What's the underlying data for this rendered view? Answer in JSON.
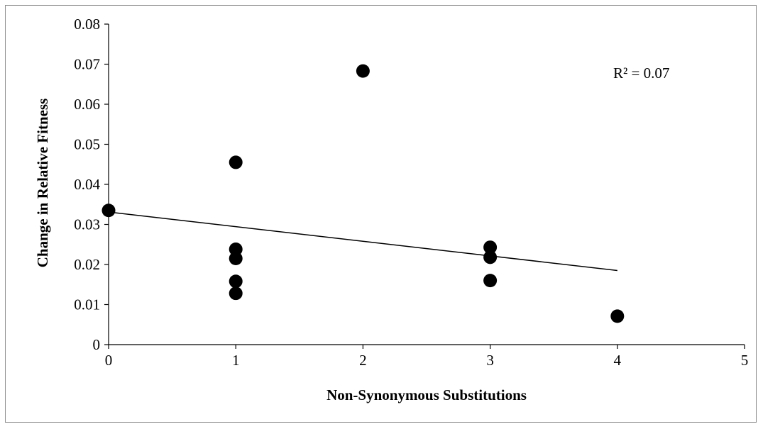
{
  "chart_data": {
    "type": "scatter",
    "xlabel": "Non-Synonymous Substitutions",
    "ylabel": "Change in Relative Fitness",
    "xlim": [
      0,
      5
    ],
    "ylim": [
      0,
      0.08
    ],
    "x_ticks": [
      "0",
      "1",
      "2",
      "3",
      "4",
      "5"
    ],
    "y_ticks": [
      "0",
      "0.01",
      "0.02",
      "0.03",
      "0.04",
      "0.05",
      "0.06",
      "0.07",
      "0.08"
    ],
    "grid": false,
    "legend": false,
    "points": [
      {
        "x": 0,
        "y": 0.0335
      },
      {
        "x": 1,
        "y": 0.0455
      },
      {
        "x": 1,
        "y": 0.0238
      },
      {
        "x": 1,
        "y": 0.0215
      },
      {
        "x": 1,
        "y": 0.0158
      },
      {
        "x": 1,
        "y": 0.0128
      },
      {
        "x": 2,
        "y": 0.0683
      },
      {
        "x": 3,
        "y": 0.0243
      },
      {
        "x": 3,
        "y": 0.0218
      },
      {
        "x": 3,
        "y": 0.016
      },
      {
        "x": 4,
        "y": 0.0071
      }
    ],
    "trendline": {
      "type": "linear",
      "x": [
        0,
        4
      ],
      "y": [
        0.0331,
        0.0185
      ]
    },
    "r_squared_label": "R² = 0.07",
    "colors": {
      "marker": "#000000",
      "trendline": "#000000",
      "axis": "#000000",
      "frame": "#8c8c8c"
    }
  }
}
